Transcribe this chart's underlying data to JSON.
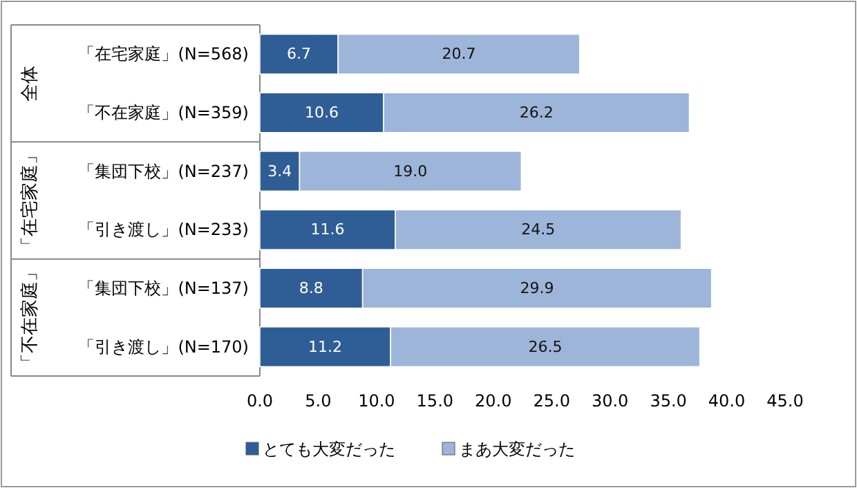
{
  "chart_data": {
    "type": "bar",
    "orientation": "horizontal",
    "stacked": true,
    "categories": [
      "「在宅家庭」(N=568)",
      "「不在家庭」(N=359)",
      "「集団下校」(N=237)",
      "「引き渡し」(N=233)",
      "「集団下校」(N=137)",
      "「引き渡し」(N=170)"
    ],
    "series": [
      {
        "name": "とても大変だった",
        "color": "#2f5e96",
        "values": [
          6.7,
          10.6,
          3.4,
          11.6,
          8.8,
          11.2
        ]
      },
      {
        "name": "まあ大変だった",
        "color": "#9db5d8",
        "values": [
          20.7,
          26.2,
          19.0,
          24.5,
          29.9,
          26.5
        ]
      }
    ],
    "xlim": [
      0,
      45
    ],
    "xticks": [
      {
        "value": 0,
        "label": "0.0"
      },
      {
        "value": 5,
        "label": "5.0"
      },
      {
        "value": 10,
        "label": "10.0"
      },
      {
        "value": 15,
        "label": "15.0"
      },
      {
        "value": 20,
        "label": "20.0"
      },
      {
        "value": 25,
        "label": "25.0"
      },
      {
        "value": 30,
        "label": "30.0"
      },
      {
        "value": 35,
        "label": "35.0"
      },
      {
        "value": 40,
        "label": "40.0"
      },
      {
        "value": 45,
        "label": "45.0"
      }
    ],
    "value_labels": [
      [
        "6.7",
        "10.6",
        "3.4",
        "11.6",
        "8.8",
        "11.2"
      ],
      [
        "20.7",
        "26.2",
        "19.0",
        "24.5",
        "29.9",
        "26.5"
      ]
    ],
    "annotations": [
      "全体",
      "「在宅家庭」",
      "「不在家庭」"
    ],
    "grid": false,
    "legend": "bottom"
  }
}
